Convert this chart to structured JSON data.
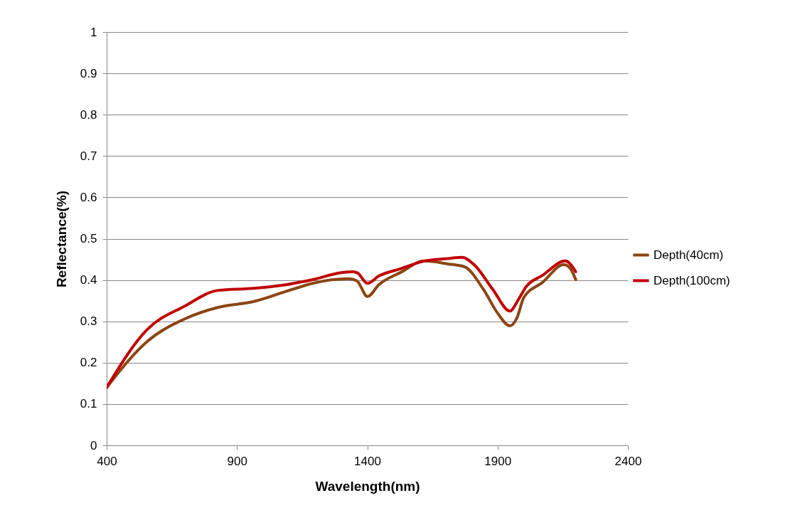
{
  "chart_data": {
    "type": "line",
    "xlabel": "Wavelength(nm)",
    "ylabel": "Reflectance(%)",
    "xlim": [
      400,
      2400
    ],
    "xticks": [
      400,
      900,
      1400,
      1900,
      2400
    ],
    "ylim": [
      0,
      1
    ],
    "yticks": [
      0,
      0.1,
      0.2,
      0.3,
      0.4,
      0.5,
      0.6,
      0.7,
      0.8,
      0.9,
      1
    ],
    "grid": "y",
    "legend": "right",
    "line_style": "solid",
    "marker": "none",
    "series": [
      {
        "name": "Depth(40cm)",
        "color": "#8b4513",
        "x": [
          400,
          555,
          700,
          828,
          965,
          1101,
          1191,
          1328,
          1360,
          1401,
          1445,
          1527,
          1619,
          1709,
          1773,
          1846,
          1900,
          1947,
          1974,
          2001,
          2072,
          2154,
          2178,
          2200
        ],
        "values": [
          0.14,
          0.251,
          0.306,
          0.334,
          0.348,
          0.375,
          0.392,
          0.403,
          0.398,
          0.36,
          0.389,
          0.418,
          0.446,
          0.439,
          0.432,
          0.377,
          0.32,
          0.289,
          0.308,
          0.358,
          0.394,
          0.437,
          0.429,
          0.401
        ]
      },
      {
        "name": "Depth(100cm)",
        "color": "#c00000",
        "x": [
          400,
          555,
          700,
          828,
          965,
          1101,
          1191,
          1300,
          1347,
          1363,
          1401,
          1445,
          1527,
          1619,
          1709,
          1764,
          1810,
          1882,
          1947,
          1982,
          2010,
          2072,
          2160,
          2200
        ],
        "values": [
          0.14,
          0.28,
          0.337,
          0.375,
          0.38,
          0.39,
          0.401,
          0.418,
          0.42,
          0.417,
          0.392,
          0.41,
          0.427,
          0.446,
          0.452,
          0.455,
          0.437,
          0.377,
          0.325,
          0.355,
          0.384,
          0.411,
          0.446,
          0.42
        ]
      }
    ]
  }
}
